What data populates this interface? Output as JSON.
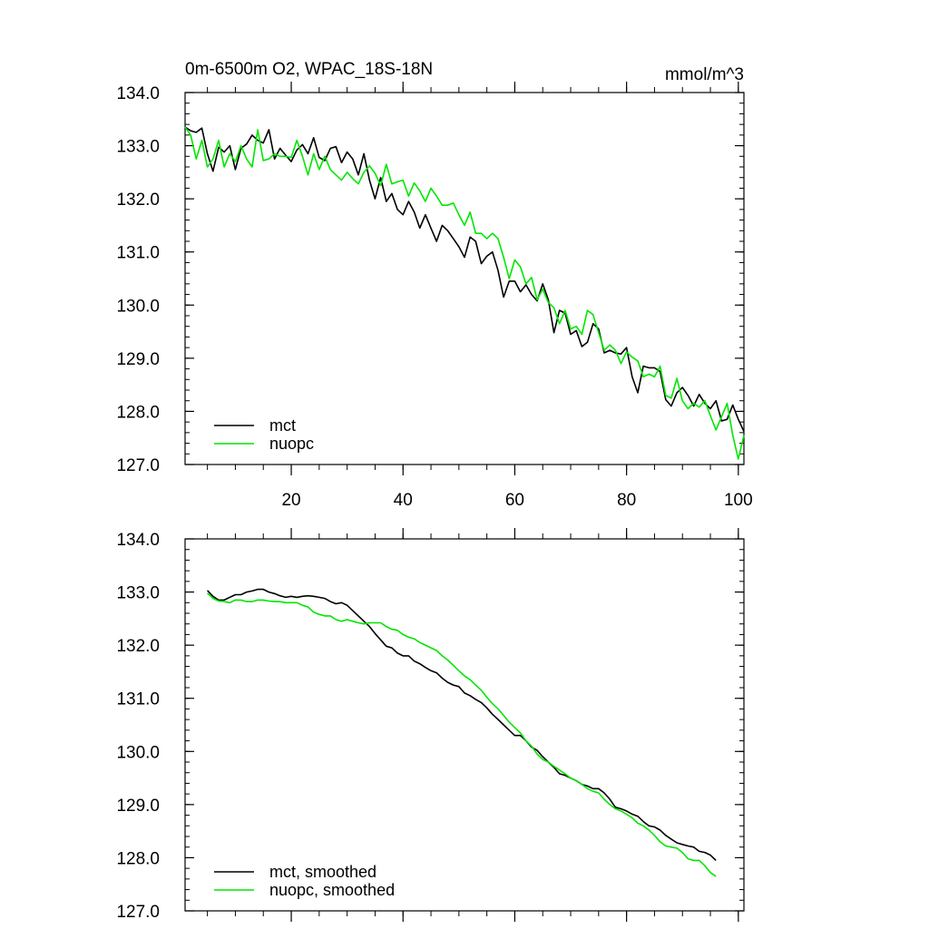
{
  "chart_data": [
    {
      "type": "line",
      "title": "0m-6500m O2, WPAC_18S-18N",
      "units": "mmol/m^3",
      "xlim": [
        1,
        101
      ],
      "ylim": [
        127.0,
        134.0
      ],
      "x_ticks": [
        20,
        40,
        60,
        80,
        100
      ],
      "x_tick_labels": [
        "20",
        "40",
        "60",
        "80",
        "100"
      ],
      "y_ticks": [
        127.0,
        128.0,
        129.0,
        130.0,
        131.0,
        132.0,
        133.0,
        134.0
      ],
      "y_tick_labels": [
        "127.0",
        "128.0",
        "129.0",
        "130.0",
        "131.0",
        "132.0",
        "133.0",
        "134.0"
      ],
      "legend_position": "bottom-left",
      "series": [
        {
          "name": "mct",
          "color": "#000000",
          "x_start": 1,
          "values": [
            133.35,
            133.28,
            133.25,
            133.33,
            132.85,
            132.52,
            132.97,
            132.88,
            133.0,
            132.55,
            132.95,
            133.03,
            133.2,
            133.1,
            133.05,
            133.3,
            132.75,
            132.95,
            132.82,
            132.7,
            132.92,
            133.02,
            132.85,
            133.15,
            132.78,
            132.72,
            132.95,
            132.98,
            132.68,
            132.88,
            132.75,
            132.45,
            132.85,
            132.35,
            132.0,
            132.4,
            131.95,
            132.1,
            131.8,
            131.7,
            131.95,
            131.75,
            131.45,
            131.7,
            131.45,
            131.2,
            131.5,
            131.4,
            131.25,
            131.1,
            130.9,
            131.28,
            131.2,
            130.78,
            130.92,
            131.0,
            130.65,
            130.15,
            130.45,
            130.45,
            130.25,
            130.38,
            130.2,
            130.08,
            130.4,
            130.1,
            129.48,
            129.9,
            129.85,
            129.45,
            129.52,
            129.22,
            129.3,
            129.65,
            129.55,
            129.1,
            129.15,
            129.1,
            129.08,
            129.2,
            128.65,
            128.35,
            128.85,
            128.82,
            128.82,
            128.75,
            128.22,
            128.1,
            128.35,
            128.45,
            128.3,
            128.1,
            128.32,
            128.15,
            128.05,
            128.2,
            127.82,
            127.85,
            128.12,
            127.85,
            127.62
          ]
        },
        {
          "name": "nuopc",
          "color": "#00e600",
          "x_start": 1,
          "values": [
            133.35,
            133.2,
            132.75,
            133.1,
            132.6,
            132.75,
            133.1,
            132.6,
            132.85,
            132.7,
            133.0,
            132.75,
            132.6,
            133.3,
            132.72,
            132.75,
            132.85,
            132.8,
            132.8,
            132.78,
            133.1,
            132.8,
            132.45,
            132.85,
            132.55,
            132.8,
            132.55,
            132.45,
            132.35,
            132.5,
            132.38,
            132.28,
            132.5,
            132.62,
            132.48,
            132.25,
            132.65,
            132.28,
            132.32,
            132.35,
            132.05,
            132.3,
            132.15,
            131.95,
            132.2,
            132.05,
            131.88,
            131.88,
            131.92,
            131.7,
            131.5,
            131.75,
            131.35,
            131.35,
            131.25,
            131.35,
            131.25,
            130.9,
            130.5,
            130.85,
            130.72,
            130.4,
            130.52,
            130.1,
            130.3,
            130.05,
            129.95,
            129.65,
            129.9,
            129.55,
            129.6,
            129.45,
            129.9,
            129.82,
            129.48,
            129.15,
            129.25,
            129.15,
            128.9,
            129.12,
            129.02,
            128.95,
            128.65,
            128.7,
            128.65,
            128.85,
            128.3,
            128.25,
            128.62,
            128.2,
            128.05,
            128.15,
            128.08,
            128.2,
            127.92,
            127.65,
            127.9,
            128.15,
            127.55,
            127.1,
            127.55
          ]
        }
      ]
    },
    {
      "type": "line",
      "title": "",
      "xlim": [
        1,
        101
      ],
      "ylim": [
        127.0,
        134.0
      ],
      "x_ticks": [
        20,
        40,
        60,
        80,
        100
      ],
      "x_tick_labels": [],
      "y_ticks": [
        127.0,
        128.0,
        129.0,
        130.0,
        131.0,
        132.0,
        133.0,
        134.0
      ],
      "y_tick_labels": [
        "127.0",
        "128.0",
        "129.0",
        "130.0",
        "131.0",
        "132.0",
        "133.0",
        "134.0"
      ],
      "legend_position": "bottom-left",
      "series": [
        {
          "name": "mct, smoothed",
          "color": "#000000",
          "x_start": 5,
          "values": [
            133.03,
            132.92,
            132.85,
            132.85,
            132.9,
            132.95,
            132.95,
            133.0,
            133.02,
            133.05,
            133.05,
            133.0,
            132.97,
            132.93,
            132.9,
            132.92,
            132.9,
            132.92,
            132.93,
            132.92,
            132.9,
            132.88,
            132.82,
            132.78,
            132.8,
            132.75,
            132.65,
            132.55,
            132.45,
            132.35,
            132.22,
            132.1,
            131.98,
            131.95,
            131.85,
            131.8,
            131.8,
            131.7,
            131.65,
            131.58,
            131.52,
            131.48,
            131.38,
            131.3,
            131.25,
            131.22,
            131.1,
            131.05,
            130.98,
            130.92,
            130.82,
            130.7,
            130.6,
            130.5,
            130.4,
            130.3,
            130.3,
            130.2,
            130.08,
            130.02,
            129.9,
            129.8,
            129.7,
            129.58,
            129.55,
            129.5,
            129.45,
            129.38,
            129.35,
            129.3,
            129.3,
            129.22,
            129.1,
            128.95,
            128.92,
            128.88,
            128.82,
            128.78,
            128.68,
            128.6,
            128.58,
            128.52,
            128.42,
            128.35,
            128.28,
            128.25,
            128.22,
            128.2,
            128.12,
            128.1,
            128.05,
            127.95
          ]
        },
        {
          "name": "nuopc, smoothed",
          "color": "#00e600",
          "x_start": 5,
          "values": [
            132.98,
            132.88,
            132.83,
            132.82,
            132.8,
            132.85,
            132.85,
            132.82,
            132.82,
            132.85,
            132.85,
            132.83,
            132.82,
            132.82,
            132.8,
            132.8,
            132.8,
            132.75,
            132.72,
            132.62,
            132.58,
            132.55,
            132.55,
            132.48,
            132.45,
            132.48,
            132.45,
            132.42,
            132.4,
            132.42,
            132.42,
            132.42,
            132.35,
            132.3,
            132.28,
            132.2,
            132.15,
            132.12,
            132.05,
            132.0,
            131.95,
            131.9,
            131.8,
            131.72,
            131.62,
            131.52,
            131.42,
            131.35,
            131.25,
            131.15,
            131.02,
            130.9,
            130.8,
            130.68,
            130.55,
            130.45,
            130.35,
            130.2,
            130.1,
            129.95,
            129.85,
            129.8,
            129.72,
            129.65,
            129.58,
            129.5,
            129.45,
            129.38,
            129.3,
            129.25,
            129.22,
            129.1,
            129.0,
            128.92,
            128.88,
            128.82,
            128.75,
            128.65,
            128.6,
            128.52,
            128.42,
            128.3,
            128.22,
            128.2,
            128.18,
            128.1,
            127.98,
            127.95,
            127.95,
            127.85,
            127.72,
            127.65
          ]
        }
      ]
    }
  ]
}
